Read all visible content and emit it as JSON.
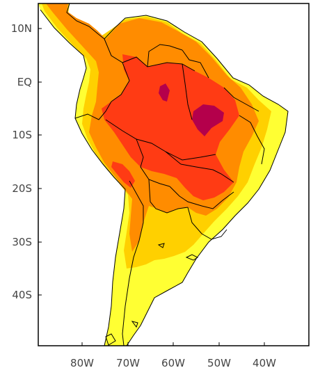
{
  "map": {
    "lat_labels": [
      "10N",
      "EQ",
      "10S",
      "20S",
      "30S",
      "40S"
    ],
    "lon_labels": [
      "80W",
      "70W",
      "60W",
      "50W",
      "40W"
    ],
    "color_scale": [
      {
        "level": 1,
        "color": "#ffff33"
      },
      {
        "level": 2,
        "color": "#ffd000"
      },
      {
        "level": 3,
        "color": "#ff8c00"
      },
      {
        "level": 4,
        "color": "#ff3b14"
      },
      {
        "level": 5,
        "color": "#b4004b"
      }
    ],
    "border_color": "#000000",
    "background": "#ffffff"
  }
}
